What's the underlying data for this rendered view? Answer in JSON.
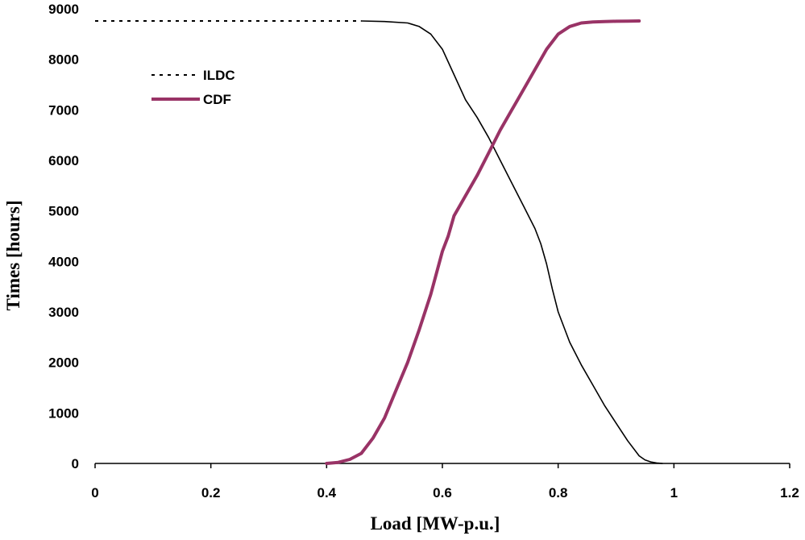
{
  "chart_data": {
    "type": "line",
    "title": "",
    "xlabel": "Load [MW-p.u.]",
    "ylabel": "Times [hours]",
    "xlim": [
      0,
      1.2
    ],
    "ylim": [
      0,
      9000
    ],
    "x_ticks": [
      "0",
      "0.2",
      "0.4",
      "0.6",
      "0.8",
      "1",
      "1.2"
    ],
    "y_ticks": [
      "0",
      "1000",
      "2000",
      "3000",
      "4000",
      "5000",
      "6000",
      "7000",
      "8000",
      "9000"
    ],
    "grid": false,
    "legend_position": "top-left",
    "series": [
      {
        "name": "ILDC",
        "style": "dotted",
        "color": "#000000",
        "x": [
          0.0,
          0.46
        ],
        "y": [
          8760,
          8760
        ]
      },
      {
        "name": "ILDC",
        "style": "solid",
        "color": "#000000",
        "x": [
          0.46,
          0.5,
          0.54,
          0.56,
          0.58,
          0.6,
          0.62,
          0.64,
          0.66,
          0.68,
          0.7,
          0.72,
          0.74,
          0.76,
          0.77,
          0.78,
          0.79,
          0.8,
          0.82,
          0.84,
          0.86,
          0.88,
          0.9,
          0.92,
          0.94,
          0.95,
          0.96,
          0.97,
          0.98
        ],
        "y": [
          8760,
          8750,
          8720,
          8650,
          8500,
          8200,
          7700,
          7200,
          6850,
          6450,
          6000,
          5550,
          5100,
          4650,
          4350,
          3950,
          3450,
          3000,
          2400,
          1950,
          1550,
          1150,
          800,
          450,
          150,
          70,
          30,
          10,
          0
        ]
      },
      {
        "name": "CDF",
        "style": "solid",
        "color": "#993366",
        "x": [
          0.4,
          0.42,
          0.44,
          0.46,
          0.48,
          0.5,
          0.52,
          0.54,
          0.56,
          0.58,
          0.6,
          0.61,
          0.62,
          0.64,
          0.66,
          0.68,
          0.7,
          0.72,
          0.74,
          0.76,
          0.78,
          0.8,
          0.82,
          0.84,
          0.86,
          0.88,
          0.9,
          0.92,
          0.94
        ],
        "y": [
          0,
          20,
          80,
          200,
          500,
          900,
          1450,
          2000,
          2650,
          3350,
          4200,
          4500,
          4900,
          5300,
          5700,
          6150,
          6600,
          7000,
          7400,
          7800,
          8200,
          8500,
          8650,
          8720,
          8740,
          8750,
          8755,
          8758,
          8760
        ]
      }
    ],
    "legend": [
      {
        "label": "ILDC",
        "style": "dotted",
        "color": "#000000"
      },
      {
        "label": "CDF",
        "style": "solid",
        "color": "#993366"
      }
    ]
  }
}
